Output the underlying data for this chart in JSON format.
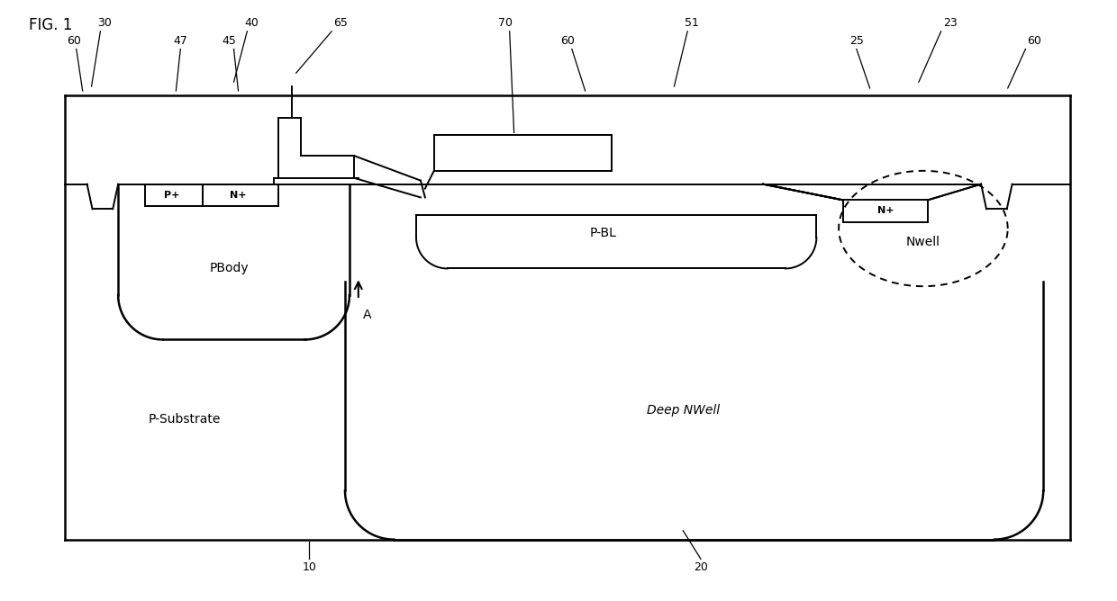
{
  "bg_color": "#ffffff",
  "line_color": "#000000",
  "fig_width": 12.4,
  "fig_height": 6.68,
  "labels": {
    "fig_title": "FIG. 1",
    "p_substrate": "P-Substrate",
    "deep_nwell": "Deep NWell",
    "pbody": "PBody",
    "p_bl": "P-BL",
    "nwell": "Nwell",
    "p_plus": "P+",
    "n_plus_left": "N+",
    "n_plus_right": "N+",
    "point_A": "A",
    "num_10": "10",
    "num_20": "20",
    "num_23": "23",
    "num_25": "25",
    "num_30": "30",
    "num_40": "40",
    "num_45": "45",
    "num_47": "47",
    "num_51": "51",
    "num_60a": "60",
    "num_60b": "60",
    "num_60c": "60",
    "num_65": "65",
    "num_70": "70"
  }
}
